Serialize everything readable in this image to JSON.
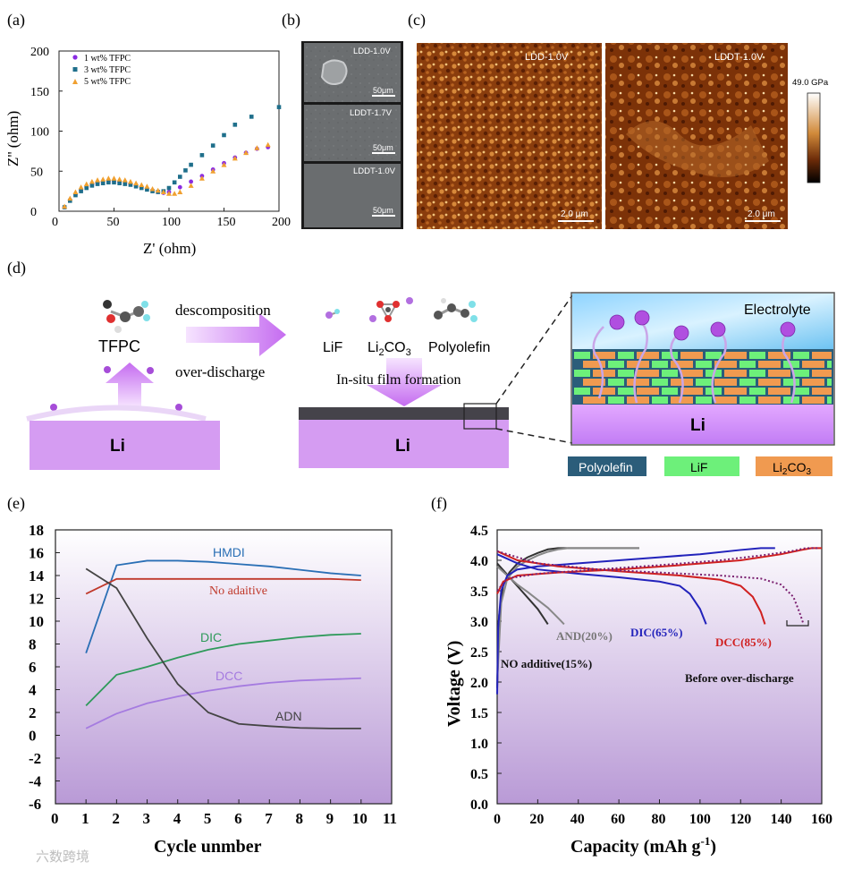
{
  "panels": {
    "a": {
      "label": "(a)",
      "ylabel": "Z'' (ohm)",
      "xlabel": "Z' (ohm)",
      "legend": [
        "1 wt% TFPC",
        "3 wt% TFPC",
        "5 wt% TFPC"
      ],
      "colors": [
        "#8a2be2",
        "#1f6f8b",
        "#f0a030"
      ],
      "xticks": [
        "0",
        "50",
        "100",
        "150",
        "200"
      ],
      "yticks": [
        "0",
        "50",
        "100",
        "150",
        "200"
      ]
    },
    "b": {
      "label": "(b)",
      "tiles": [
        "LDD-1.0V",
        "LDDT-1.7V",
        "LDDT-1.0V"
      ],
      "scale": "50μm"
    },
    "c": {
      "label": "(c)",
      "left_title": "LDD-1.0V",
      "right_title": "LDDT-1.0V",
      "colorbar": "49.0 GPa",
      "scale": "2.0 μm"
    },
    "d": {
      "label": "(d)",
      "tfpc": "TFPC",
      "arrow_top": "descomposition",
      "arrow_bottom": "over-discharge",
      "products": [
        "LiF",
        "Li2CO3",
        "Polyolefin"
      ],
      "film": "In-situ film formation",
      "li": "Li",
      "electrolyte": "Electrolyte",
      "legend": [
        "Polyolefin",
        "LiF",
        "Li2CO3"
      ]
    },
    "e": {
      "label": "(e)",
      "xlabel": "Cycle unmber",
      "series_labels": [
        "HMDI",
        "No adaitive",
        "DIC",
        "DCC",
        "ADN"
      ]
    },
    "f": {
      "label": "(f)",
      "xlabel": "Capacity (mAh g-1)",
      "ylabel": "Voltage (V)",
      "annotations": [
        "AND(20%)",
        "DIC(65%)",
        "DCC(85%)",
        "NO additive(15%)",
        "Before over-discharge"
      ]
    }
  },
  "watermark": "六数跨境",
  "chart_data": [
    {
      "type": "scatter",
      "panel": "a",
      "xlabel": "Z' (ohm)",
      "ylabel": "Z'' (ohm)",
      "xlim": [
        0,
        200
      ],
      "ylim": [
        0,
        200
      ],
      "series": [
        {
          "name": "1 wt% TFPC",
          "x": [
            5,
            10,
            15,
            20,
            25,
            30,
            35,
            40,
            45,
            50,
            55,
            60,
            65,
            70,
            75,
            80,
            85,
            90,
            95,
            100,
            110,
            120,
            130,
            140,
            150,
            160,
            170,
            180,
            190
          ],
          "y": [
            5,
            14,
            21,
            26,
            30,
            33,
            35,
            36,
            37,
            37,
            36,
            35,
            34,
            32,
            30,
            28,
            26,
            24,
            23,
            24,
            30,
            37,
            44,
            52,
            60,
            67,
            73,
            78,
            80
          ]
        },
        {
          "name": "3 wt% TFPC",
          "x": [
            5,
            10,
            15,
            20,
            25,
            30,
            35,
            40,
            45,
            50,
            55,
            60,
            65,
            70,
            75,
            80,
            85,
            90,
            95,
            100,
            105,
            110,
            115,
            120,
            130,
            140,
            150,
            160,
            175,
            200
          ],
          "y": [
            5,
            13,
            20,
            25,
            29,
            32,
            34,
            35,
            36,
            36,
            35,
            34,
            33,
            31,
            29,
            27,
            25,
            24,
            25,
            29,
            36,
            43,
            51,
            58,
            70,
            82,
            95,
            108,
            118,
            130
          ]
        },
        {
          "name": "5 wt% TFPC",
          "x": [
            5,
            10,
            15,
            20,
            25,
            30,
            35,
            40,
            45,
            50,
            55,
            60,
            65,
            70,
            75,
            80,
            85,
            90,
            95,
            100,
            105,
            110,
            120,
            130,
            140,
            150,
            160,
            170,
            180,
            190
          ],
          "y": [
            6,
            16,
            24,
            30,
            34,
            37,
            39,
            40,
            41,
            41,
            40,
            39,
            37,
            35,
            33,
            31,
            28,
            26,
            24,
            22,
            22,
            24,
            32,
            41,
            50,
            58,
            66,
            73,
            79,
            83
          ]
        }
      ]
    },
    {
      "type": "line",
      "panel": "e",
      "xlabel": "Cycle unmber",
      "xlim": [
        0,
        11
      ],
      "ylim": [
        -6,
        18
      ],
      "series": [
        {
          "name": "HMDI",
          "color": "#2a6fb5",
          "x": [
            1,
            2,
            3,
            4,
            5,
            6,
            7,
            8,
            9,
            10
          ],
          "y": [
            7.2,
            14.9,
            15.3,
            15.3,
            15.2,
            15.0,
            14.8,
            14.5,
            14.2,
            14.0
          ]
        },
        {
          "name": "No adaitive",
          "color": "#c0392b",
          "x": [
            1,
            2,
            3,
            4,
            5,
            6,
            7,
            8,
            9,
            10
          ],
          "y": [
            12.4,
            13.7,
            13.7,
            13.7,
            13.7,
            13.7,
            13.7,
            13.7,
            13.7,
            13.6
          ]
        },
        {
          "name": "DIC",
          "color": "#2e9a5a",
          "x": [
            1,
            2,
            3,
            4,
            5,
            6,
            7,
            8,
            9,
            10
          ],
          "y": [
            2.6,
            5.3,
            6.0,
            6.8,
            7.5,
            8.0,
            8.3,
            8.6,
            8.8,
            8.9
          ]
        },
        {
          "name": "DCC",
          "color": "#a57be0",
          "x": [
            1,
            2,
            3,
            4,
            5,
            6,
            7,
            8,
            9,
            10
          ],
          "y": [
            0.6,
            1.9,
            2.8,
            3.4,
            3.9,
            4.3,
            4.6,
            4.8,
            4.9,
            5.0
          ]
        },
        {
          "name": "ADN",
          "color": "#444444",
          "x": [
            1,
            2,
            3,
            4,
            5,
            6,
            7,
            8,
            9,
            10
          ],
          "y": [
            14.6,
            12.9,
            8.5,
            4.5,
            2.0,
            1.0,
            0.8,
            0.65,
            0.6,
            0.6
          ]
        }
      ]
    },
    {
      "type": "line",
      "panel": "f",
      "xlabel": "Capacity (mAh g-1)",
      "ylabel": "Voltage (V)",
      "xlim": [
        0,
        160
      ],
      "ylim": [
        0,
        4.5
      ],
      "series": [
        {
          "name": "NO additive(15%) charge",
          "color": "#333333",
          "x": [
            0,
            1,
            3,
            6,
            10,
            15,
            20,
            25,
            30,
            40,
            50,
            60,
            70
          ],
          "y": [
            1.9,
            3.1,
            3.6,
            3.8,
            3.95,
            4.05,
            4.12,
            4.18,
            4.2,
            4.2,
            4.2,
            4.2,
            4.2
          ]
        },
        {
          "name": "NO additive(15%) discharge",
          "color": "#333333",
          "x": [
            0,
            4,
            8,
            12,
            16,
            20,
            23,
            25
          ],
          "y": [
            3.95,
            3.8,
            3.65,
            3.5,
            3.35,
            3.2,
            3.05,
            2.95
          ]
        },
        {
          "name": "AND(20%) charge",
          "color": "#888888",
          "x": [
            0,
            2,
            5,
            10,
            15,
            20,
            25,
            30,
            35,
            50,
            60,
            70
          ],
          "y": [
            2.0,
            3.3,
            3.7,
            3.9,
            4.0,
            4.08,
            4.14,
            4.18,
            4.2,
            4.2,
            4.2,
            4.2
          ]
        },
        {
          "name": "AND(20%) discharge",
          "color": "#888888",
          "x": [
            0,
            5,
            10,
            15,
            20,
            25,
            28,
            31,
            33
          ],
          "y": [
            3.9,
            3.75,
            3.6,
            3.48,
            3.35,
            3.22,
            3.12,
            3.02,
            2.95
          ]
        },
        {
          "name": "DIC(65%) charge",
          "color": "#2222bb",
          "x": [
            0,
            0.5,
            2,
            5,
            10,
            20,
            40,
            60,
            80,
            100,
            120,
            130,
            137
          ],
          "y": [
            1.8,
            2.9,
            3.5,
            3.75,
            3.85,
            3.9,
            3.95,
            4.0,
            4.05,
            4.1,
            4.17,
            4.2,
            4.2
          ]
        },
        {
          "name": "DIC(65%) discharge",
          "color": "#2222bb",
          "x": [
            0,
            10,
            20,
            40,
            60,
            80,
            90,
            95,
            100,
            103
          ],
          "y": [
            4.1,
            3.95,
            3.85,
            3.78,
            3.72,
            3.65,
            3.58,
            3.45,
            3.2,
            2.95
          ]
        },
        {
          "name": "DCC(85%) charge",
          "color": "#d02020",
          "x": [
            0,
            3,
            10,
            30,
            60,
            90,
            120,
            140,
            150,
            155,
            160
          ],
          "y": [
            3.45,
            3.65,
            3.75,
            3.8,
            3.85,
            3.92,
            4.0,
            4.1,
            4.17,
            4.2,
            4.2
          ]
        },
        {
          "name": "DCC(85%) discharge",
          "color": "#d02020",
          "x": [
            0,
            10,
            30,
            60,
            90,
            110,
            120,
            126,
            130,
            132
          ],
          "y": [
            4.15,
            4.0,
            3.9,
            3.82,
            3.75,
            3.68,
            3.58,
            3.4,
            3.15,
            2.95
          ]
        },
        {
          "name": "Before over-discharge charge",
          "color": "#7a1f6f",
          "x": [
            0,
            5,
            20,
            50,
            80,
            110,
            130,
            145,
            152,
            158
          ],
          "y": [
            3.5,
            3.7,
            3.78,
            3.85,
            3.92,
            4.0,
            4.08,
            4.15,
            4.2,
            4.2
          ]
        },
        {
          "name": "Before over-discharge discharge",
          "color": "#7a1f6f",
          "x": [
            0,
            20,
            50,
            80,
            110,
            130,
            140,
            146,
            149,
            151
          ],
          "y": [
            4.15,
            3.95,
            3.85,
            3.8,
            3.75,
            3.7,
            3.6,
            3.4,
            3.15,
            2.95
          ]
        }
      ]
    }
  ]
}
